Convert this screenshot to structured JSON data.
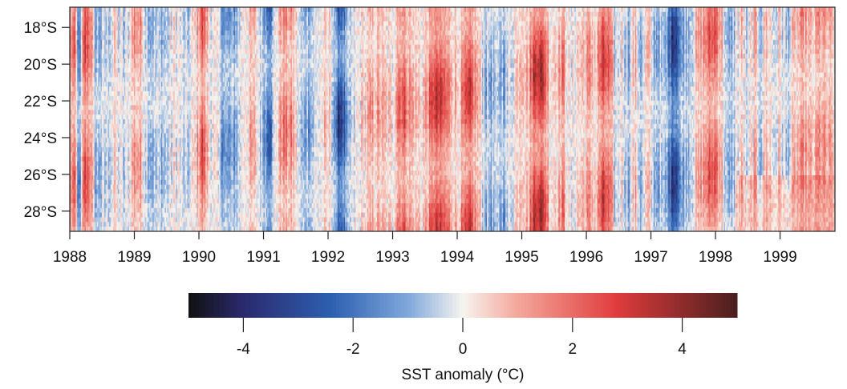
{
  "chart_data": {
    "type": "heatmap",
    "title": "",
    "x": {
      "label": "",
      "range": [
        1988.0,
        1999.85
      ],
      "ticks": [
        1988,
        1989,
        1990,
        1991,
        1992,
        1993,
        1994,
        1995,
        1996,
        1997,
        1998,
        1999
      ],
      "tick_labels": [
        "1988",
        "1989",
        "1990",
        "1991",
        "1992",
        "1993",
        "1994",
        "1995",
        "1996",
        "1997",
        "1998",
        "1999"
      ]
    },
    "y": {
      "label": "",
      "range_deg_south": [
        16.9,
        29.1
      ],
      "ticks": [
        18,
        20,
        22,
        24,
        26,
        28
      ],
      "tick_labels": [
        "18°S",
        "20°S",
        "22°S",
        "24°S",
        "26°S",
        "28°S"
      ]
    },
    "colorbar": {
      "label": "SST anomaly (°C)",
      "range": [
        -5,
        5
      ],
      "ticks": [
        -4,
        -2,
        0,
        2,
        4
      ],
      "tick_labels": [
        "-4",
        "-2",
        "0",
        "2",
        "4"
      ],
      "colors": [
        "#111111",
        "#2a2a6e",
        "#2d5fb0",
        "#7fa8dc",
        "#f6f4ef",
        "#f4a79b",
        "#e03c3c",
        "#4a1e1e"
      ]
    },
    "time_resolution": "approx. weekly columns",
    "latitude_rows": 48,
    "anomaly_timeseries": {
      "columns": [
        "time",
        "anomaly_c"
      ],
      "rows": [
        [
          1988.0,
          1.2
        ],
        [
          1988.08,
          1.8
        ],
        [
          1988.15,
          -2.8
        ],
        [
          1988.22,
          2.6
        ],
        [
          1988.3,
          2.2
        ],
        [
          1988.4,
          -1.0
        ],
        [
          1988.55,
          -0.6
        ],
        [
          1988.7,
          0.3
        ],
        [
          1988.85,
          -0.8
        ],
        [
          1989.0,
          1.4
        ],
        [
          1989.1,
          1.0
        ],
        [
          1989.2,
          -0.4
        ],
        [
          1989.3,
          -0.8
        ],
        [
          1989.5,
          -0.6
        ],
        [
          1989.65,
          0.2
        ],
        [
          1989.8,
          -0.9
        ],
        [
          1989.95,
          0.4
        ],
        [
          1990.05,
          2.6
        ],
        [
          1990.15,
          0.5
        ],
        [
          1990.3,
          -0.5
        ],
        [
          1990.45,
          -1.6
        ],
        [
          1990.55,
          -1.2
        ],
        [
          1990.7,
          0.4
        ],
        [
          1990.85,
          0.8
        ],
        [
          1991.0,
          -1.0
        ],
        [
          1991.1,
          -2.0
        ],
        [
          1991.2,
          0.2
        ],
        [
          1991.3,
          1.8
        ],
        [
          1991.45,
          1.2
        ],
        [
          1991.6,
          -1.2
        ],
        [
          1991.75,
          -0.7
        ],
        [
          1991.9,
          0.2
        ],
        [
          1992.05,
          0.4
        ],
        [
          1992.15,
          -3.2
        ],
        [
          1992.25,
          -2.6
        ],
        [
          1992.35,
          -0.8
        ],
        [
          1992.5,
          0.3
        ],
        [
          1992.65,
          0.9
        ],
        [
          1992.8,
          1.1
        ],
        [
          1992.9,
          0.5
        ],
        [
          1993.0,
          0.2
        ],
        [
          1993.08,
          2.2
        ],
        [
          1993.18,
          2.4
        ],
        [
          1993.3,
          1.0
        ],
        [
          1993.45,
          0.5
        ],
        [
          1993.55,
          1.4
        ],
        [
          1993.65,
          3.0
        ],
        [
          1993.75,
          2.6
        ],
        [
          1993.85,
          1.8
        ],
        [
          1994.0,
          0.6
        ],
        [
          1994.1,
          1.6
        ],
        [
          1994.2,
          2.6
        ],
        [
          1994.3,
          1.2
        ],
        [
          1994.45,
          -0.8
        ],
        [
          1994.6,
          -1.0
        ],
        [
          1994.75,
          -0.8
        ],
        [
          1994.9,
          0.4
        ],
        [
          1995.0,
          1.4
        ],
        [
          1995.1,
          0.8
        ],
        [
          1995.2,
          3.2
        ],
        [
          1995.28,
          3.6
        ],
        [
          1995.35,
          2.8
        ],
        [
          1995.45,
          0.4
        ],
        [
          1995.55,
          1.0
        ],
        [
          1995.65,
          1.6
        ],
        [
          1995.75,
          -0.4
        ],
        [
          1995.85,
          0.5
        ],
        [
          1995.95,
          0.8
        ],
        [
          1996.05,
          1.2
        ],
        [
          1996.15,
          0.6
        ],
        [
          1996.25,
          2.6
        ],
        [
          1996.35,
          2.0
        ],
        [
          1996.45,
          -0.6
        ],
        [
          1996.55,
          0.4
        ],
        [
          1996.65,
          -0.8
        ],
        [
          1996.75,
          0.8
        ],
        [
          1996.85,
          -0.9
        ],
        [
          1996.95,
          0.6
        ],
        [
          1997.05,
          -0.8
        ],
        [
          1997.15,
          -0.9
        ],
        [
          1997.25,
          -1.2
        ],
        [
          1997.33,
          -3.0
        ],
        [
          1997.4,
          -2.6
        ],
        [
          1997.5,
          -1.0
        ],
        [
          1997.6,
          -0.3
        ],
        [
          1997.7,
          0.6
        ],
        [
          1997.8,
          1.2
        ],
        [
          1997.9,
          2.0
        ],
        [
          1998.0,
          2.4
        ],
        [
          1998.1,
          0.8
        ],
        [
          1998.2,
          -1.6
        ],
        [
          1998.3,
          -0.4
        ],
        [
          1998.4,
          0.6
        ],
        [
          1998.5,
          -0.8
        ],
        [
          1998.6,
          0.8
        ],
        [
          1998.7,
          -0.5
        ],
        [
          1998.8,
          1.0
        ],
        [
          1998.9,
          -0.4
        ],
        [
          1999.0,
          0.4
        ],
        [
          1999.1,
          -1.0
        ],
        [
          1999.2,
          0.4
        ],
        [
          1999.3,
          0.9
        ],
        [
          1999.4,
          1.2
        ],
        [
          1999.5,
          0.4
        ],
        [
          1999.6,
          1.4
        ],
        [
          1999.7,
          1.0
        ],
        [
          1999.8,
          0.6
        ]
      ]
    }
  }
}
